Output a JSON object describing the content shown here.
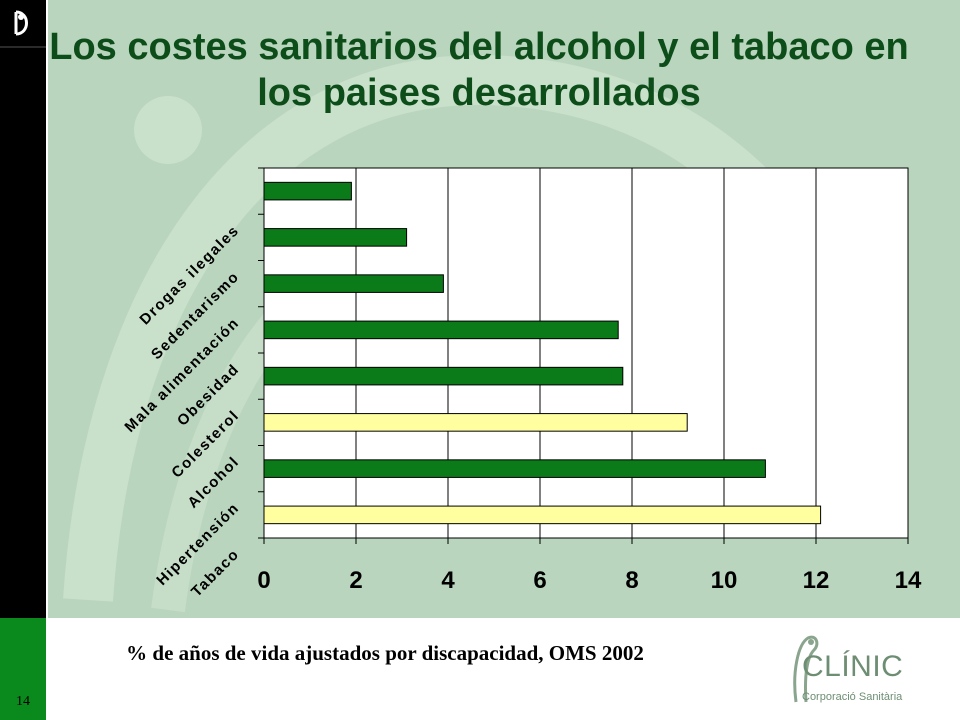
{
  "slide": {
    "title": "Los costes sanitarios del alcohol y el tabaco en los paises desarrollados",
    "caption": "% de años de vida ajustados por discapacidad, OMS 2002",
    "page_number": "14",
    "logo": {
      "name": "CLÍNIC",
      "subtitle": "Corporació Sanitària"
    }
  },
  "colors": {
    "background": "#b9d5bd",
    "title": "#0d4d1a",
    "bar_green": "#0b7a18",
    "bar_highlight": "#ffffa0",
    "sidebar": "#000000",
    "sidebar_accent": "#0a8a1c"
  },
  "chart_data": {
    "type": "bar",
    "orientation": "horizontal",
    "title": "",
    "xlabel": "",
    "ylabel": "",
    "categories": [
      "Tabaco",
      "Hipertensión",
      "Alcohol",
      "Colesterol",
      "Obesidad",
      "Mala alimentación",
      "Sedentarismo",
      "Drogas ilegales"
    ],
    "values": [
      12.1,
      10.9,
      9.2,
      7.8,
      7.7,
      3.9,
      3.1,
      1.9
    ],
    "highlighted": [
      "Tabaco",
      "Alcohol"
    ],
    "xlim": [
      0,
      14
    ],
    "xticks": [
      "0",
      "2",
      "4",
      "6",
      "8",
      "10",
      "12",
      "14"
    ],
    "grid": true,
    "legend": "none"
  }
}
